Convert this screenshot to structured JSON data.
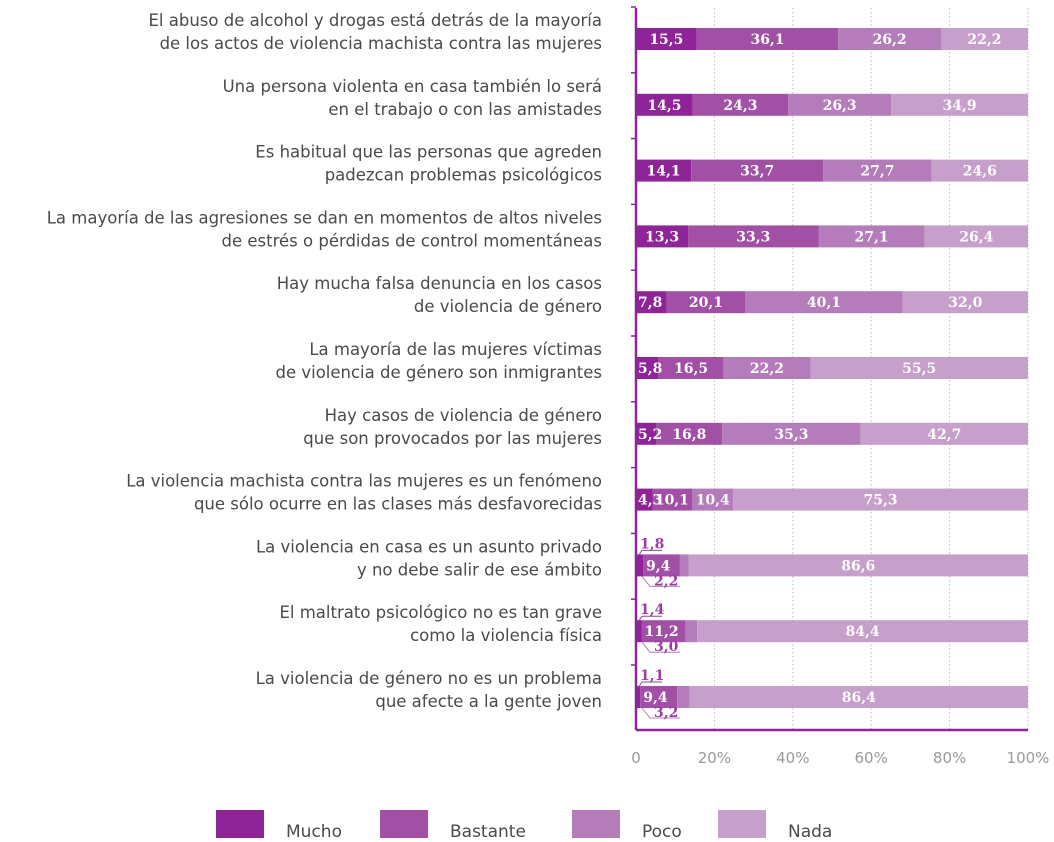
{
  "chart_data": {
    "type": "bar",
    "orientation": "horizontal",
    "stacked": true,
    "categories": [
      [
        "El abuso de alcohol y drogas está detrás de la mayoría",
        "de los actos de violencia machista contra las mujeres"
      ],
      [
        "Una persona violenta en casa también lo será",
        "en el trabajo o con las amistades"
      ],
      [
        "Es habitual que las personas que agreden",
        "padezcan problemas psicológicos"
      ],
      [
        "La mayoría de las agresiones se dan en momentos de altos niveles",
        "de estrés o pérdidas de control momentáneas"
      ],
      [
        "Hay mucha falsa denuncia en los casos",
        "de violencia de género"
      ],
      [
        "La mayoría de las mujeres víctimas",
        "de violencia de género son inmigrantes"
      ],
      [
        "Hay casos de violencia de género",
        "que son provocados por las mujeres"
      ],
      [
        "La violencia machista contra las mujeres es un fenómeno",
        "que sólo ocurre en las clases más desfavorecidas"
      ],
      [
        "La violencia en casa es un asunto privado",
        "y no debe salir de ese ámbito"
      ],
      [
        "El maltrato psicológico no es tan grave",
        "como la violencia física"
      ],
      [
        "La violencia de género no es un problema",
        "que afecte a la gente joven"
      ]
    ],
    "series": [
      {
        "name": "Mucho",
        "color": "#8e2497",
        "values": [
          15.5,
          14.5,
          14.1,
          13.3,
          7.8,
          5.8,
          5.2,
          4.3,
          1.8,
          1.4,
          1.1
        ]
      },
      {
        "name": "Bastante",
        "color": "#a24fa6",
        "values": [
          36.1,
          24.3,
          33.7,
          33.3,
          20.1,
          16.5,
          16.8,
          10.1,
          9.4,
          11.2,
          9.4
        ]
      },
      {
        "name": "Poco",
        "color": "#b47cba",
        "values": [
          26.2,
          26.3,
          27.7,
          27.1,
          40.1,
          22.2,
          35.3,
          10.4,
          2.2,
          3.0,
          3.2
        ]
      },
      {
        "name": "Nada",
        "color": "#c6a0cb",
        "values": [
          22.2,
          34.9,
          24.6,
          26.4,
          32.0,
          55.5,
          42.7,
          75.3,
          86.6,
          84.4,
          86.4
        ]
      }
    ],
    "value_labels": [
      [
        "15,5",
        "36,1",
        "26,2",
        "22,2"
      ],
      [
        "14,5",
        "24,3",
        "26,3",
        "34,9"
      ],
      [
        "14,1",
        "33,7",
        "27,7",
        "24,6"
      ],
      [
        "13,3",
        "33,3",
        "27,1",
        "26,4"
      ],
      [
        "7,8",
        "20,1",
        "40,1",
        "32,0"
      ],
      [
        "5,8",
        "16,5",
        "22,2",
        "55,5"
      ],
      [
        "5,2",
        "16,8",
        "35,3",
        "42,7"
      ],
      [
        "4,3",
        "10,1",
        "10,4",
        "75,3"
      ],
      [
        "1,8",
        "9,4",
        "2,2",
        "86,6"
      ],
      [
        "1,4",
        "11,2",
        "3,0",
        "84,4"
      ],
      [
        "1,1",
        "9,4",
        "3,2",
        "86,4"
      ]
    ],
    "x_ticks": [
      "0",
      "20%",
      "40%",
      "60%",
      "80%",
      "100%"
    ],
    "xlim": [
      0,
      100
    ],
    "grid": "vertical-dotted",
    "legend_position": "bottom"
  }
}
